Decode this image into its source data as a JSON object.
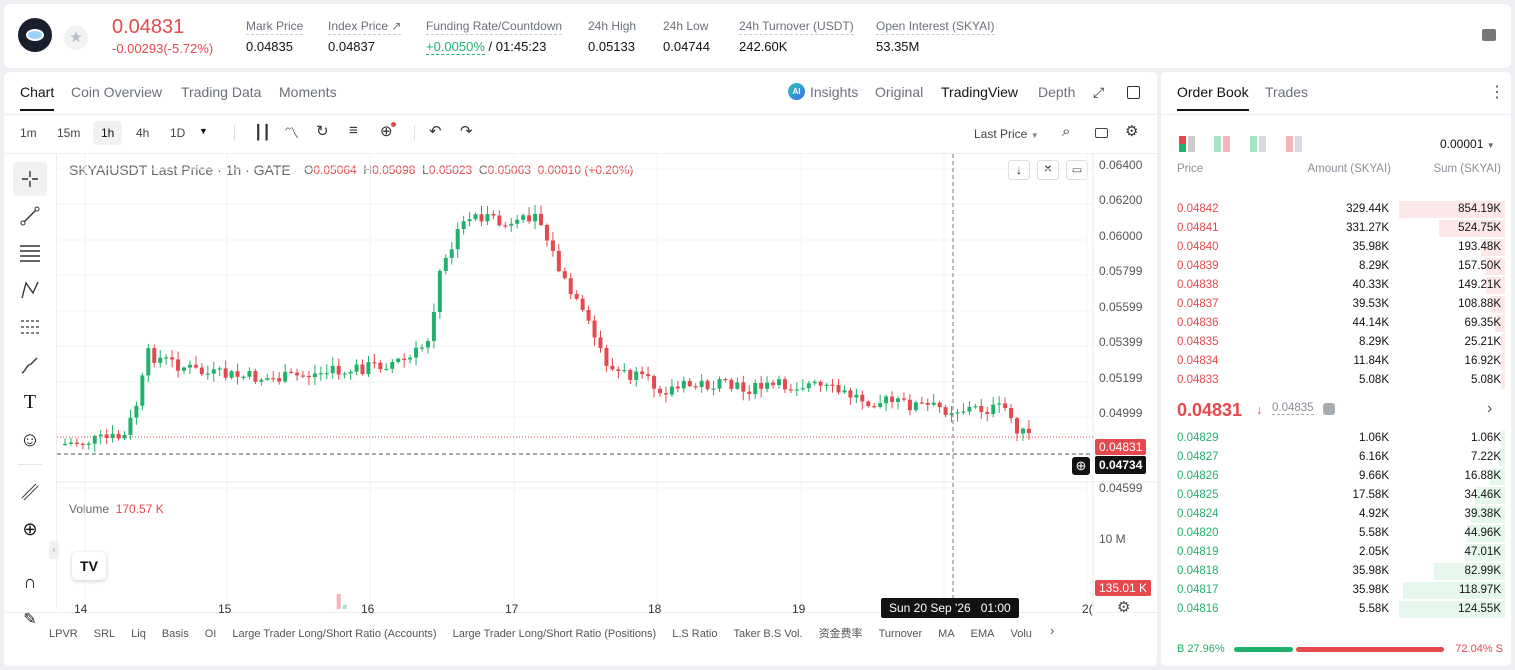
{
  "header": {
    "price": "0.04831",
    "change": "-0.00293(-5.72%)",
    "stats": [
      {
        "label": "Mark Price",
        "value": "0.04835"
      },
      {
        "label": "Index Price ↗",
        "value": "0.04837"
      },
      {
        "label": "Funding Rate/Countdown",
        "value": "+0.0050%",
        "value2": "/ 01:45:23"
      },
      {
        "label": "24h High",
        "value": "0.05133"
      },
      {
        "label": "24h Low",
        "value": "0.04744"
      },
      {
        "label": "24h Turnover (USDT)",
        "value": "242.60K"
      },
      {
        "label": "Open Interest (SKYAI)",
        "value": "53.35M"
      }
    ]
  },
  "chart_tabs": [
    "Chart",
    "Coin Overview",
    "Trading Data",
    "Moments"
  ],
  "chart_views": [
    "Insights",
    "Original",
    "TradingView",
    "Depth"
  ],
  "timeframes": [
    "1m",
    "15m",
    "1h",
    "4h",
    "1D"
  ],
  "price_source": "Last Price",
  "legend": {
    "symbol": "SKYAIUSDT Last Price · 1h · GATE",
    "o_label": "O",
    "o": "0.05064",
    "h_label": "H",
    "h": "0.05098",
    "l_label": "L",
    "l": "0.05023",
    "c_label": "C",
    "c": "0.05063",
    "chg": "0.00010 (+0.20%)"
  },
  "volume": {
    "label": "Volume",
    "value": "170.57 K",
    "axis_label": "10 M",
    "last_label": "135.01 K"
  },
  "price_axis": [
    "0.06400",
    "0.06200",
    "0.06000",
    "0.05799",
    "0.05599",
    "0.05399",
    "0.05199",
    "0.04999",
    "0.04831",
    "0.04734",
    "0.04599"
  ],
  "date_axis": [
    "14",
    "15",
    "16",
    "17",
    "18",
    "19",
    "2("
  ],
  "crosshair_date": "Sun 20 Sep '26",
  "crosshair_time": "01:00",
  "indicators": [
    "LPVR",
    "SRL",
    "Liq",
    "Basis",
    "OI",
    "Large Trader Long/Short Ratio (Accounts)",
    "Large Trader Long/Short Ratio (Positions)",
    "L.S Ratio",
    "Taker B.S Vol.",
    "资金费率",
    "Turnover",
    "MA",
    "EMA",
    "Volu"
  ],
  "orderbook": {
    "tabs": [
      "Order Book",
      "Trades"
    ],
    "precision": "0.00001",
    "cols": [
      "Price",
      "Amount (SKYAI)",
      "Sum (SKYAI)"
    ],
    "asks": [
      [
        "0.04842",
        "329.44K",
        "854.19K",
        1.0
      ],
      [
        "0.04841",
        "331.27K",
        "524.75K",
        0.62
      ],
      [
        "0.04840",
        "35.98K",
        "193.48K",
        0.23
      ],
      [
        "0.04839",
        "8.29K",
        "157.50K",
        0.19
      ],
      [
        "0.04838",
        "40.33K",
        "149.21K",
        0.18
      ],
      [
        "0.04837",
        "39.53K",
        "108.88K",
        0.13
      ],
      [
        "0.04836",
        "44.14K",
        "69.35K",
        0.09
      ],
      [
        "0.04835",
        "8.29K",
        "25.21K",
        0.04
      ],
      [
        "0.04834",
        "11.84K",
        "16.92K",
        0.03
      ],
      [
        "0.04833",
        "5.08K",
        "5.08K",
        0.01
      ]
    ],
    "last_price": "0.04831",
    "mark_price": "0.04835",
    "bids": [
      [
        "0.04829",
        "1.06K",
        "1.06K",
        0.01
      ],
      [
        "0.04827",
        "6.16K",
        "7.22K",
        0.06
      ],
      [
        "0.04826",
        "9.66K",
        "16.88K",
        0.14
      ],
      [
        "0.04825",
        "17.58K",
        "34.46K",
        0.28
      ],
      [
        "0.04824",
        "4.92K",
        "39.38K",
        0.32
      ],
      [
        "0.04820",
        "5.58K",
        "44.96K",
        0.36
      ],
      [
        "0.04819",
        "2.05K",
        "47.01K",
        0.38
      ],
      [
        "0.04818",
        "35.98K",
        "82.99K",
        0.67
      ],
      [
        "0.04817",
        "35.98K",
        "118.97K",
        0.96
      ],
      [
        "0.04816",
        "5.58K",
        "124.55K",
        1.0
      ]
    ],
    "buy_ratio": "B 27.96%",
    "sell_ratio": "72.04% S",
    "buy_frac": 0.2796
  },
  "colors": {
    "up": "#20b26c",
    "down": "#e5484d",
    "up_light": "#a9e3c6",
    "down_light": "#f4b3b6"
  }
}
